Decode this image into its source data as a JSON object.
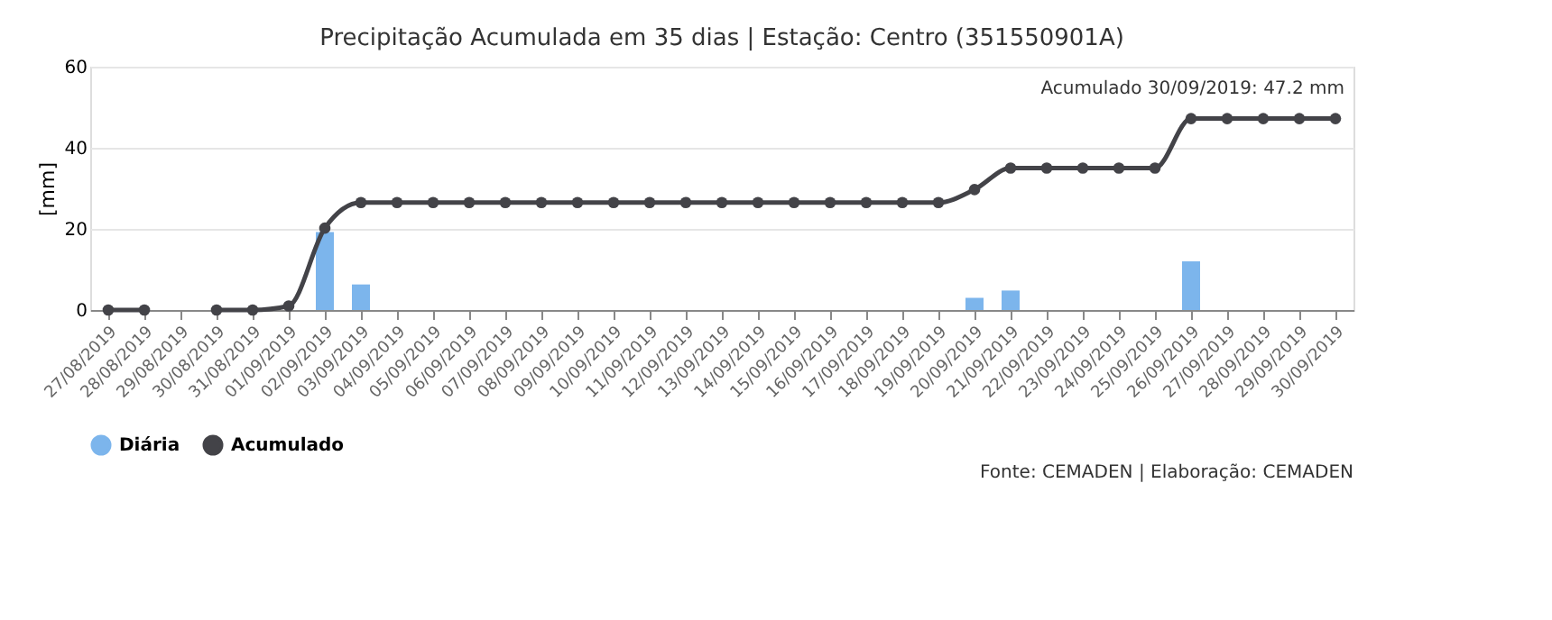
{
  "chart_data": {
    "type": "bar",
    "title": "Precipitação Acumulada em 35 dias | Estação: Centro (351550901A)",
    "categories": [
      "27/08/2019",
      "28/08/2019",
      "29/08/2019",
      "30/08/2019",
      "31/08/2019",
      "01/09/2019",
      "02/09/2019",
      "03/09/2019",
      "04/09/2019",
      "05/09/2019",
      "06/09/2019",
      "07/09/2019",
      "08/09/2019",
      "09/09/2019",
      "10/09/2019",
      "11/09/2019",
      "12/09/2019",
      "13/09/2019",
      "14/09/2019",
      "15/09/2019",
      "16/09/2019",
      "17/09/2019",
      "18/09/2019",
      "19/09/2019",
      "20/09/2019",
      "21/09/2019",
      "22/09/2019",
      "23/09/2019",
      "24/09/2019",
      "25/09/2019",
      "26/09/2019",
      "27/09/2019",
      "28/09/2019",
      "29/09/2019",
      "30/09/2019"
    ],
    "series": [
      {
        "name": "Diária",
        "color": "#7cb5ec",
        "values": [
          null,
          null,
          null,
          null,
          null,
          null,
          19.2,
          6.3,
          null,
          null,
          null,
          null,
          null,
          null,
          null,
          null,
          null,
          null,
          null,
          null,
          null,
          null,
          null,
          null,
          3.0,
          4.8,
          null,
          null,
          null,
          null,
          12.0,
          null,
          null,
          null,
          null
        ]
      },
      {
        "name": "Acumulado",
        "type": "line",
        "color": "#434348",
        "marker": "circle",
        "values": [
          0,
          0,
          null,
          0,
          0,
          1.0,
          20.2,
          26.5,
          26.5,
          26.5,
          26.5,
          26.5,
          26.5,
          26.5,
          26.5,
          26.5,
          26.5,
          26.5,
          26.5,
          26.5,
          26.5,
          26.5,
          26.5,
          26.5,
          29.7,
          35.0,
          35.0,
          35.0,
          35.0,
          35.0,
          47.2,
          47.2,
          47.2,
          47.2,
          47.2
        ]
      }
    ],
    "ylabel": "[mm]",
    "ylim": [
      0,
      60
    ],
    "yticks": [
      0,
      20,
      40,
      60
    ],
    "grid": "y",
    "legend": "bottom",
    "annotations": [
      {
        "text": "Acumulado 30/09/2019: 47.2 mm",
        "x": "30/09/2019",
        "y": 47.2
      },
      "Fonte: CEMADEN | Elaboração: CEMADEN"
    ]
  }
}
